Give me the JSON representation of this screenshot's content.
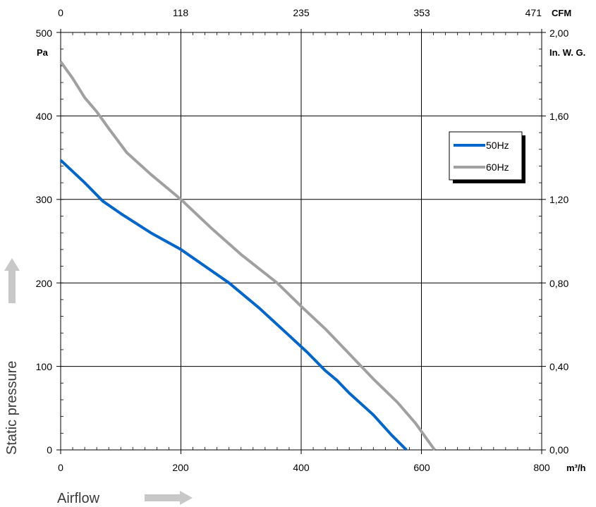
{
  "chart_data": {
    "type": "line",
    "xlabel": "Airflow",
    "ylabel": "Static pressure",
    "x_unit": "m³/h",
    "y_unit": "Pa",
    "x_top_unit": "CFM",
    "y_right_unit": "In. W. G.",
    "xlim": [
      0,
      800
    ],
    "ylim": [
      0,
      500
    ],
    "x_ticks": [
      "0",
      "200",
      "400",
      "600",
      "800"
    ],
    "y_ticks": [
      "0",
      "100",
      "200",
      "300",
      "400",
      "500"
    ],
    "x_top_ticks": [
      "0",
      "118",
      "235",
      "353",
      "471"
    ],
    "y_right_ticks": [
      "0,00",
      "0,40",
      "0,80",
      "1,20",
      "1,60",
      "2,00"
    ],
    "grid": true,
    "legend_position": "right",
    "series": [
      {
        "name": "50Hz",
        "color": "#0066cc",
        "x": [
          0,
          40,
          70,
          100,
          150,
          200,
          240,
          280,
          330,
          380,
          410,
          440,
          460,
          480,
          520,
          550,
          575
        ],
        "y": [
          347,
          320,
          298,
          283,
          260,
          240,
          220,
          200,
          170,
          137,
          117,
          95,
          83,
          68,
          42,
          18,
          0
        ]
      },
      {
        "name": "60Hz",
        "color": "#a0a0a0",
        "x": [
          0,
          20,
          40,
          60,
          80,
          110,
          150,
          200,
          250,
          300,
          360,
          400,
          440,
          480,
          520,
          560,
          590,
          610,
          622
        ],
        "y": [
          465,
          445,
          422,
          405,
          385,
          356,
          330,
          300,
          266,
          234,
          200,
          172,
          145,
          115,
          85,
          57,
          32,
          12,
          0
        ]
      }
    ]
  }
}
